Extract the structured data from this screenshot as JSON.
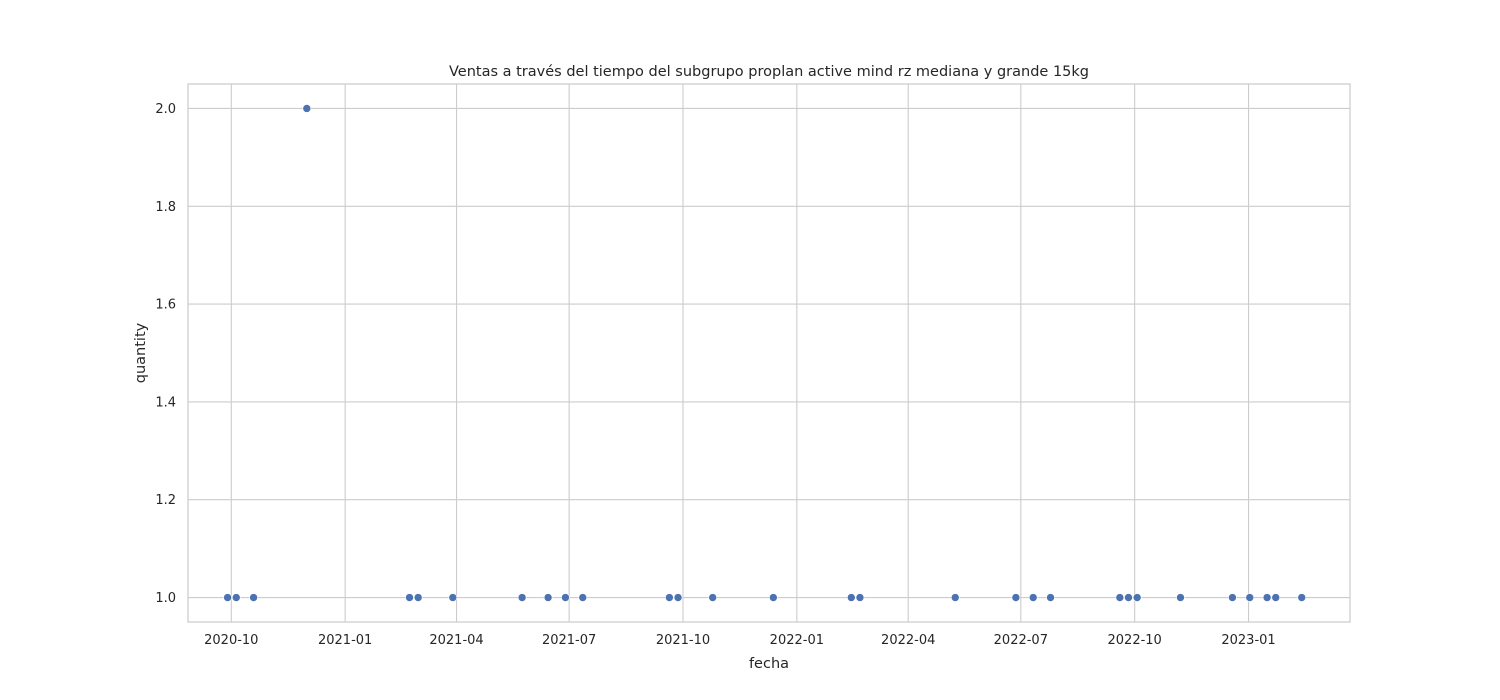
{
  "chart_data": {
    "type": "scatter",
    "title": "Ventas a través del tiempo del subgrupo proplan active mind rz mediana y grande 15kg",
    "xlabel": "fecha",
    "ylabel": "quantity",
    "xlim": [
      "2020-08-27",
      "2023-03-24"
    ],
    "ylim": [
      0.95,
      2.05
    ],
    "grid": true,
    "point_color": "#4c72b0",
    "x_ticks": [
      {
        "date": "2020-10-01",
        "label": "2020-10"
      },
      {
        "date": "2021-01-01",
        "label": "2021-01"
      },
      {
        "date": "2021-04-01",
        "label": "2021-04"
      },
      {
        "date": "2021-07-01",
        "label": "2021-07"
      },
      {
        "date": "2021-10-01",
        "label": "2021-10"
      },
      {
        "date": "2022-01-01",
        "label": "2022-01"
      },
      {
        "date": "2022-04-01",
        "label": "2022-04"
      },
      {
        "date": "2022-07-01",
        "label": "2022-07"
      },
      {
        "date": "2022-10-01",
        "label": "2022-10"
      },
      {
        "date": "2023-01-01",
        "label": "2023-01"
      }
    ],
    "y_ticks": [
      {
        "value": 1.0,
        "label": "1.0"
      },
      {
        "value": 1.2,
        "label": "1.2"
      },
      {
        "value": 1.4,
        "label": "1.4"
      },
      {
        "value": 1.6,
        "label": "1.6"
      },
      {
        "value": 1.8,
        "label": "1.8"
      },
      {
        "value": 2.0,
        "label": "2.0"
      }
    ],
    "points": [
      {
        "x": "2020-09-28",
        "y": 1
      },
      {
        "x": "2020-10-05",
        "y": 1
      },
      {
        "x": "2020-10-19",
        "y": 1
      },
      {
        "x": "2020-12-01",
        "y": 2
      },
      {
        "x": "2021-02-22",
        "y": 1
      },
      {
        "x": "2021-03-01",
        "y": 1
      },
      {
        "x": "2021-03-29",
        "y": 1
      },
      {
        "x": "2021-05-24",
        "y": 1
      },
      {
        "x": "2021-06-14",
        "y": 1
      },
      {
        "x": "2021-06-28",
        "y": 1
      },
      {
        "x": "2021-07-12",
        "y": 1
      },
      {
        "x": "2021-09-20",
        "y": 1
      },
      {
        "x": "2021-09-27",
        "y": 1
      },
      {
        "x": "2021-10-25",
        "y": 1
      },
      {
        "x": "2021-12-13",
        "y": 1
      },
      {
        "x": "2022-02-14",
        "y": 1
      },
      {
        "x": "2022-02-21",
        "y": 1
      },
      {
        "x": "2022-05-09",
        "y": 1
      },
      {
        "x": "2022-06-27",
        "y": 1
      },
      {
        "x": "2022-07-11",
        "y": 1
      },
      {
        "x": "2022-07-25",
        "y": 1
      },
      {
        "x": "2022-09-19",
        "y": 1
      },
      {
        "x": "2022-09-26",
        "y": 1
      },
      {
        "x": "2022-10-03",
        "y": 1
      },
      {
        "x": "2022-11-07",
        "y": 1
      },
      {
        "x": "2022-12-19",
        "y": 1
      },
      {
        "x": "2023-01-02",
        "y": 1
      },
      {
        "x": "2023-01-16",
        "y": 1
      },
      {
        "x": "2023-01-23",
        "y": 1
      },
      {
        "x": "2023-02-13",
        "y": 1
      }
    ]
  }
}
